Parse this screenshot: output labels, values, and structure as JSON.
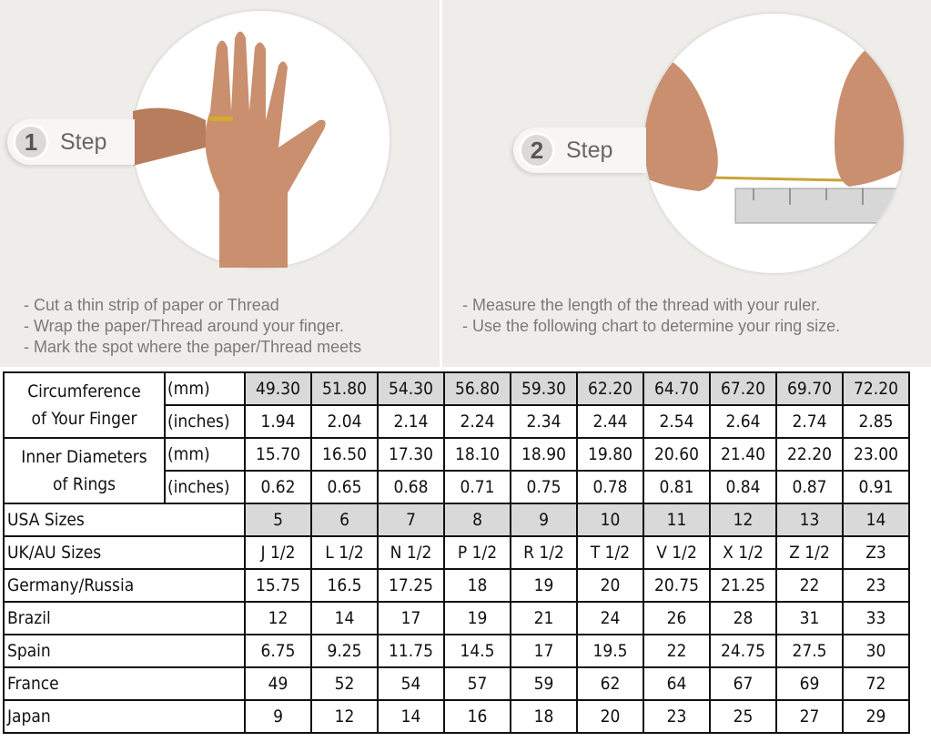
{
  "step1": {
    "number": "1",
    "label": "Step",
    "instructions": [
      "- Cut a thin strip of paper or Thread",
      "- Wrap the paper/Thread around your finger.",
      "- Mark the spot where the paper/Thread meets"
    ]
  },
  "step2": {
    "number": "2",
    "label": "Step",
    "instructions": [
      "- Measure the length of the thread with your ruler.",
      "- Use the following chart to determine your ring size."
    ]
  },
  "table": {
    "circumference": {
      "label_line1": "Circumference",
      "label_line2": "of Your Finger",
      "mm_unit": "(mm)",
      "in_unit": "(inches)",
      "mm": [
        "49.30",
        "51.80",
        "54.30",
        "56.80",
        "59.30",
        "62.20",
        "64.70",
        "67.20",
        "69.70",
        "72.20"
      ],
      "inches": [
        "1.94",
        "2.04",
        "2.14",
        "2.24",
        "2.34",
        "2.44",
        "2.54",
        "2.64",
        "2.74",
        "2.85"
      ]
    },
    "inner_diameter": {
      "label_line1": "Inner Diameters",
      "label_line2": "of Rings",
      "mm_unit": "(mm)",
      "in_unit": "(inches)",
      "mm": [
        "15.70",
        "16.50",
        "17.30",
        "18.10",
        "18.90",
        "19.80",
        "20.60",
        "21.40",
        "22.20",
        "23.00"
      ],
      "inches": [
        "0.62",
        "0.65",
        "0.68",
        "0.71",
        "0.75",
        "0.78",
        "0.81",
        "0.84",
        "0.87",
        "0.91"
      ]
    },
    "rows": [
      {
        "label": "USA Sizes",
        "shaded": true,
        "values": [
          "5",
          "6",
          "7",
          "8",
          "9",
          "10",
          "11",
          "12",
          "13",
          "14"
        ]
      },
      {
        "label": "UK/AU Sizes",
        "values": [
          "J 1/2",
          "L 1/2",
          "N 1/2",
          "P 1/2",
          "R 1/2",
          "T 1/2",
          "V 1/2",
          "X 1/2",
          "Z 1/2",
          "Z3"
        ]
      },
      {
        "label": "Germany/Russia",
        "values": [
          "15.75",
          "16.5",
          "17.25",
          "18",
          "19",
          "20",
          "20.75",
          "21.25",
          "22",
          "23"
        ]
      },
      {
        "label": "Brazil",
        "values": [
          "12",
          "14",
          "17",
          "19",
          "21",
          "24",
          "26",
          "28",
          "31",
          "33"
        ]
      },
      {
        "label": "Spain",
        "values": [
          "6.75",
          "9.25",
          "11.75",
          "14.5",
          "17",
          "19.5",
          "22",
          "24.75",
          "27.5",
          "30"
        ]
      },
      {
        "label": "France",
        "values": [
          "49",
          "52",
          "54",
          "57",
          "59",
          "62",
          "64",
          "67",
          "69",
          "72"
        ]
      },
      {
        "label": "Japan",
        "values": [
          "9",
          "12",
          "14",
          "16",
          "18",
          "20",
          "23",
          "25",
          "27",
          "29"
        ]
      }
    ]
  }
}
